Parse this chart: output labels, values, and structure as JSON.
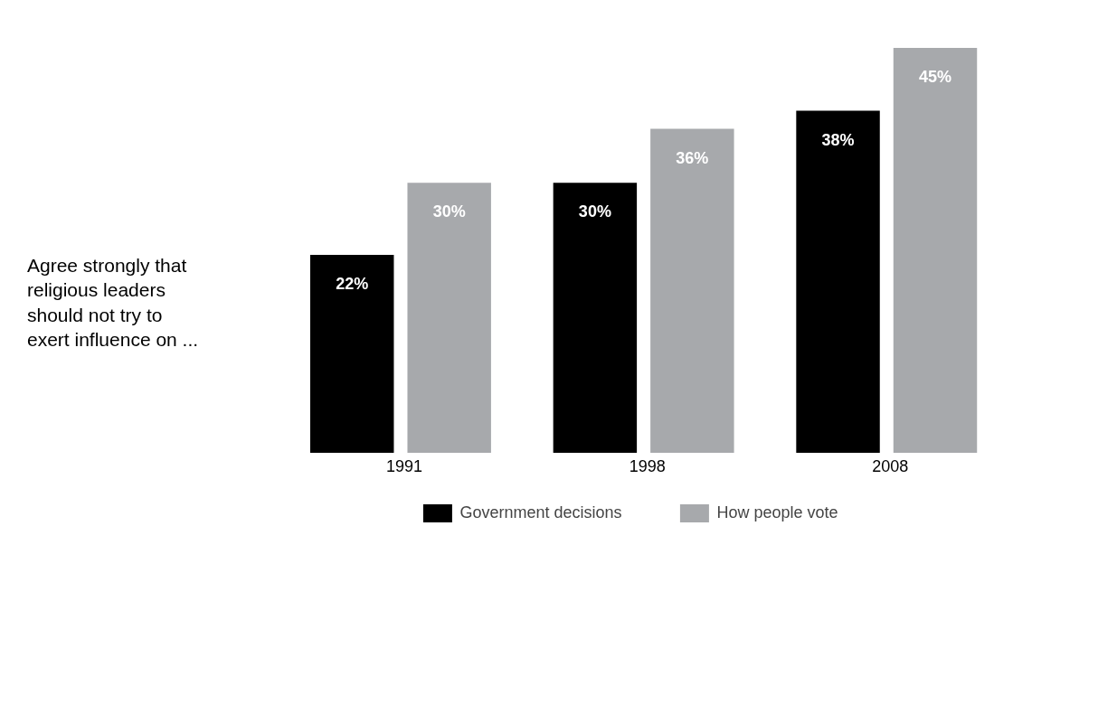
{
  "chart_data": {
    "type": "bar",
    "ylabel": "Agree strongly that religious leaders should not try to exert influence on ...",
    "categories": [
      "1991",
      "1998",
      "2008"
    ],
    "series": [
      {
        "name": "Government decisions",
        "color": "#000000",
        "values": [
          22,
          30,
          38
        ],
        "value_labels": [
          "22%",
          "30%",
          "38%"
        ]
      },
      {
        "name": "How people vote",
        "color": "#a7a9ac",
        "values": [
          30,
          36,
          45
        ],
        "value_labels": [
          "30%",
          "36%",
          "45%"
        ]
      }
    ],
    "legend": "bottom",
    "grid": false
  }
}
